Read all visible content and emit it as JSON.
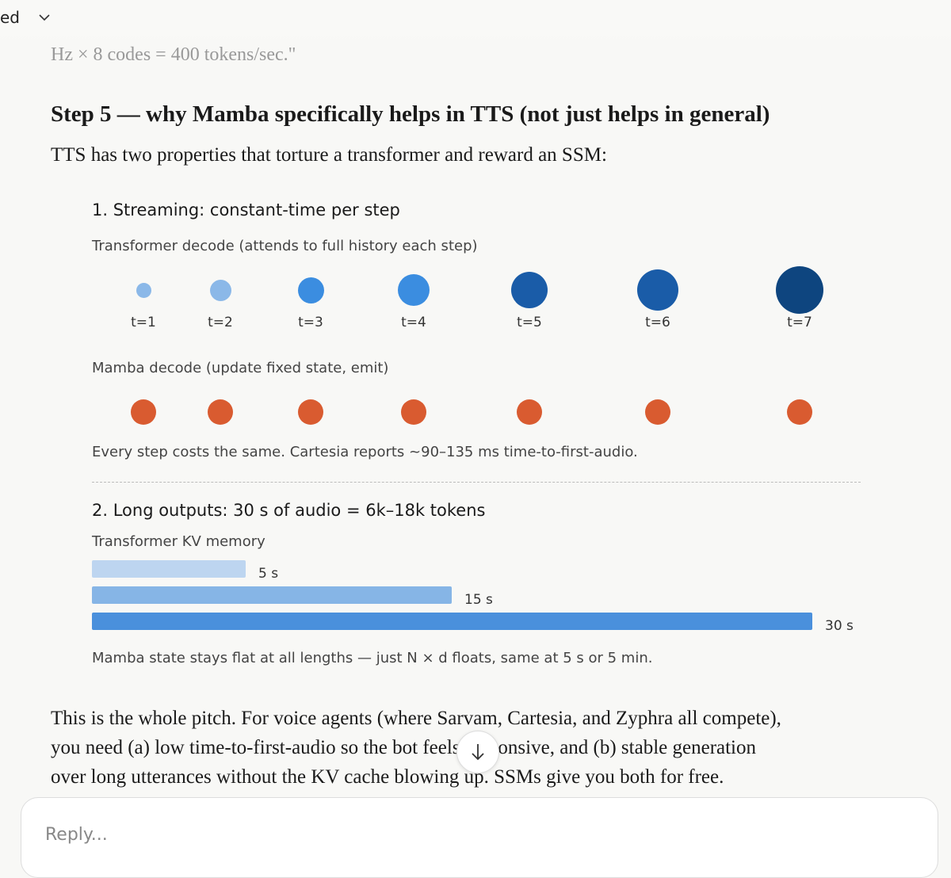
{
  "top_bar": {
    "title": "ed"
  },
  "faded_text": "Hz × 8 codes = 400 tokens/sec.\"",
  "heading": "Step 5 — why Mamba specifically helps in TTS (not just helps in general)",
  "intro": "TTS has two properties that torture a transformer and reward an SSM:",
  "widget": {
    "section1": {
      "title": "1. Streaming: constant-time per step",
      "transformer_label": "Transformer decode (attends to full history each step)",
      "steps": [
        "t=1",
        "t=2",
        "t=3",
        "t=4",
        "t=5",
        "t=6",
        "t=7"
      ],
      "mamba_label": "Mamba decode (update fixed state, emit)",
      "caption": "Every step costs the same. Cartesia reports ~90–135 ms time-to-first-audio."
    },
    "section2": {
      "title": "2. Long outputs: 30 s of audio = 6k–18k tokens",
      "bars_label": "Transformer KV memory",
      "bars": [
        "5 s",
        "15 s",
        "30 s"
      ],
      "caption": "Mamba state stays flat at all lengths — just N × d floats, same at 5 s or 5 min."
    }
  },
  "conclusion": [
    "This is the whole pitch. For voice agents (where Sarvam, Cartesia, and Zyphra all compete),",
    "you need (a) low time-to-first-audio so the bot feels responsive, and (b) stable generation",
    "over long utterances without the KV cache blowing up. SSMs give you both for free."
  ],
  "reply_placeholder": "Reply..."
}
